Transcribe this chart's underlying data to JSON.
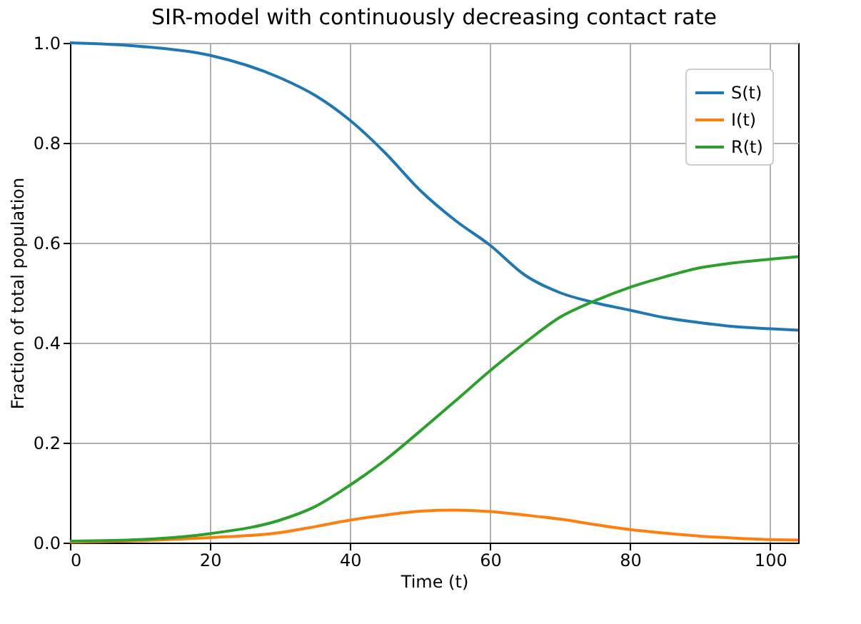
{
  "chart_data": {
    "type": "line",
    "title": "SIR-model with continuously decreasing contact rate",
    "xlabel": "Time (t)",
    "ylabel": "Fraction of total population",
    "x": [
      0,
      10,
      20,
      30,
      35,
      40,
      45,
      50,
      55,
      60,
      65,
      70,
      75,
      80,
      85,
      90,
      95,
      100,
      104
    ],
    "series": [
      {
        "name": "S(t)",
        "color": "#1f77b4",
        "values": [
          1.0,
          0.993,
          0.975,
          0.93,
          0.895,
          0.845,
          0.78,
          0.705,
          0.645,
          0.595,
          0.535,
          0.5,
          0.48,
          0.465,
          0.45,
          0.44,
          0.432,
          0.428,
          0.425
        ]
      },
      {
        "name": "I(t)",
        "color": "#ff7f0e",
        "values": [
          0.001,
          0.004,
          0.01,
          0.02,
          0.032,
          0.045,
          0.055,
          0.063,
          0.065,
          0.062,
          0.055,
          0.047,
          0.036,
          0.026,
          0.019,
          0.013,
          0.009,
          0.006,
          0.005
        ]
      },
      {
        "name": "R(t)",
        "color": "#2ca02c",
        "values": [
          0.003,
          0.006,
          0.018,
          0.045,
          0.072,
          0.115,
          0.165,
          0.223,
          0.283,
          0.344,
          0.4,
          0.451,
          0.484,
          0.511,
          0.532,
          0.55,
          0.56,
          0.567,
          0.572
        ]
      }
    ],
    "xlim": [
      0,
      104
    ],
    "ylim": [
      0,
      1
    ],
    "xticks": [
      0,
      20,
      40,
      60,
      80,
      100
    ],
    "yticks": [
      {
        "value": 0,
        "label": "0.0"
      },
      0.2,
      0.4,
      0.6,
      0.8,
      {
        "value": 1,
        "label": "1.0"
      }
    ],
    "grid": true,
    "legend": "top right",
    "line_style": "solid",
    "marker": "none"
  }
}
